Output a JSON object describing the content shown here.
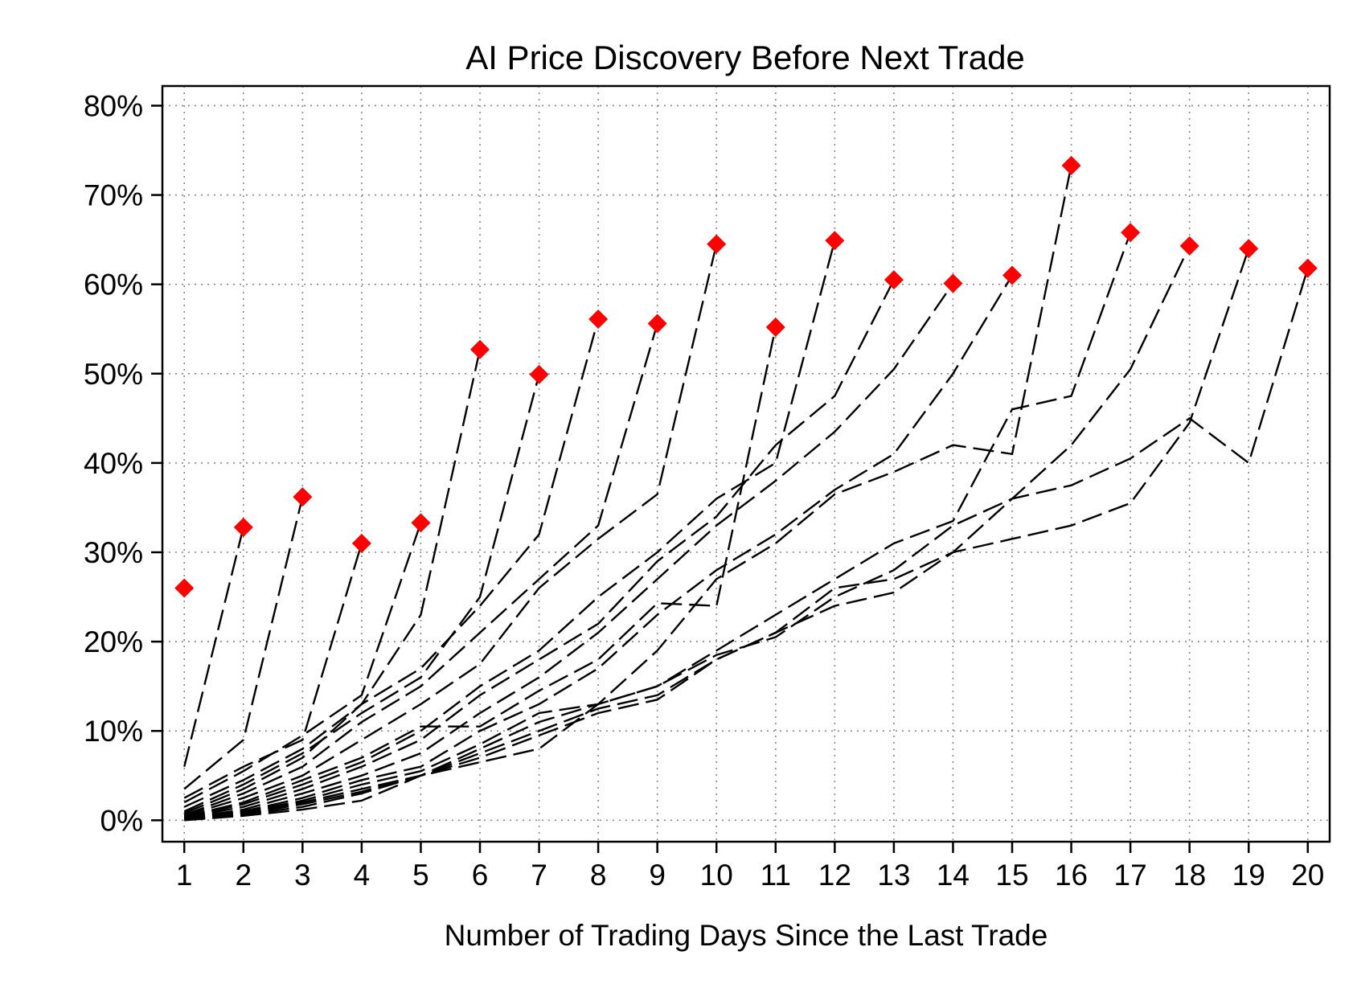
{
  "chart_data": {
    "type": "line",
    "title": "AI Price Discovery Before Next Trade",
    "xlabel": "Number of Trading Days Since the Last Trade",
    "ylabel": "",
    "x_ticks": [
      "1",
      "2",
      "3",
      "4",
      "5",
      "6",
      "7",
      "8",
      "9",
      "10",
      "11",
      "12",
      "13",
      "14",
      "15",
      "16",
      "17",
      "18",
      "19",
      "20"
    ],
    "y_ticks": [
      {
        "value": 0,
        "label": "0%"
      },
      {
        "value": 10,
        "label": "10%"
      },
      {
        "value": 20,
        "label": "20%"
      },
      {
        "value": 30,
        "label": "30%"
      },
      {
        "value": 40,
        "label": "40%"
      },
      {
        "value": 50,
        "label": "50%"
      },
      {
        "value": 60,
        "label": "60%"
      },
      {
        "value": 70,
        "label": "70%"
      },
      {
        "value": 80,
        "label": "80%"
      }
    ],
    "xlim": [
      0.63,
      20.37
    ],
    "ylim": [
      -2.4,
      82.2
    ],
    "grid": true,
    "line_style": "dashed",
    "line_color": "#000000",
    "marker_color": "#ff0000",
    "marker_shape": "diamond",
    "series": [
      {
        "values": [
          26.0
        ]
      },
      {
        "values": [
          6.0,
          32.8
        ]
      },
      {
        "values": [
          3.5,
          9.0,
          36.2
        ]
      },
      {
        "values": [
          2.5,
          6.0,
          9.0,
          31.0
        ]
      },
      {
        "values": [
          2.0,
          5.5,
          9.5,
          14.0,
          33.3
        ]
      },
      {
        "values": [
          1.5,
          4.5,
          8.0,
          13.0,
          23.0,
          52.7
        ]
      },
      {
        "values": [
          1.0,
          4.0,
          7.5,
          12.0,
          16.0,
          25.0,
          49.9
        ]
      },
      {
        "values": [
          0.8,
          3.5,
          7.0,
          13.0,
          17.0,
          24.0,
          32.0,
          56.1
        ]
      },
      {
        "values": [
          0.6,
          3.0,
          6.0,
          11.0,
          15.0,
          21.0,
          27.0,
          33.0,
          55.6
        ]
      },
      {
        "values": [
          0.5,
          2.5,
          5.0,
          9.0,
          13.0,
          17.5,
          26.0,
          31.5,
          36.5,
          64.5
        ]
      },
      {
        "values": [
          0.4,
          2.0,
          4.5,
          7.0,
          10.5,
          10.5,
          14.5,
          18.0,
          24.3,
          24.0,
          55.2
        ]
      },
      {
        "values": [
          0.3,
          1.8,
          4.0,
          6.5,
          10.0,
          15.0,
          19.0,
          25.0,
          30.0,
          36.0,
          40.0,
          64.9
        ]
      },
      {
        "values": [
          0.3,
          1.5,
          3.5,
          6.0,
          9.0,
          14.0,
          18.0,
          22.0,
          29.0,
          34.0,
          42.0,
          47.5,
          60.5
        ]
      },
      {
        "values": [
          0.2,
          1.2,
          3.0,
          5.0,
          7.5,
          12.0,
          16.0,
          21.0,
          27.0,
          33.0,
          38.0,
          43.5,
          50.5,
          60.1
        ]
      },
      {
        "values": [
          0.2,
          1.0,
          2.5,
          4.5,
          6.0,
          10.0,
          13.0,
          17.0,
          23.0,
          28.0,
          32.0,
          37.0,
          41.0,
          50.0,
          61.0
        ]
      },
      {
        "values": [
          0.1,
          0.9,
          2.2,
          4.0,
          5.5,
          8.5,
          12.0,
          13.0,
          19.0,
          27.0,
          31.0,
          36.5,
          39.0,
          42.0,
          41.0,
          73.3
        ]
      },
      {
        "values": [
          0.1,
          0.8,
          2.0,
          3.5,
          5.0,
          8.0,
          11.0,
          13.0,
          15.0,
          19.0,
          23.0,
          27.0,
          31.0,
          33.5,
          46.0,
          47.5,
          65.8
        ]
      },
      {
        "values": [
          0.1,
          0.7,
          1.8,
          3.2,
          5.0,
          7.5,
          10.0,
          12.5,
          14.0,
          18.0,
          21.0,
          26.0,
          27.0,
          30.0,
          36.0,
          42.0,
          50.5,
          64.3
        ]
      },
      {
        "values": [
          0.1,
          0.6,
          1.5,
          3.0,
          5.0,
          7.0,
          9.5,
          12.0,
          13.5,
          18.0,
          21.0,
          24.0,
          25.5,
          30.0,
          31.5,
          33.0,
          35.5,
          44.5,
          64.0
        ]
      },
      {
        "values": [
          0.0,
          0.5,
          1.2,
          2.2,
          5.0,
          6.5,
          8.0,
          13.0,
          15.0,
          18.5,
          20.5,
          25.0,
          28.0,
          33.0,
          36.0,
          37.5,
          40.5,
          45.0,
          40.0,
          61.8
        ]
      }
    ]
  }
}
